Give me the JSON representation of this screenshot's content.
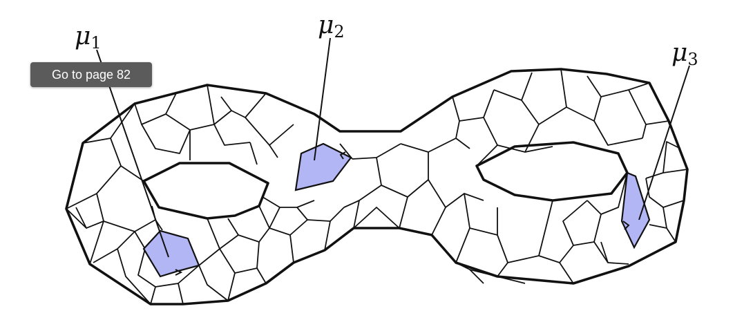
{
  "figure": {
    "labels": [
      {
        "id": "mu1",
        "symbol": "μ",
        "subscript": "1"
      },
      {
        "id": "mu2",
        "symbol": "μ",
        "subscript": "2"
      },
      {
        "id": "mu3",
        "symbol": "μ",
        "subscript": "3"
      }
    ],
    "highlight_color": "#b3b6f5"
  },
  "tooltip": {
    "text": "Go to page 82"
  }
}
